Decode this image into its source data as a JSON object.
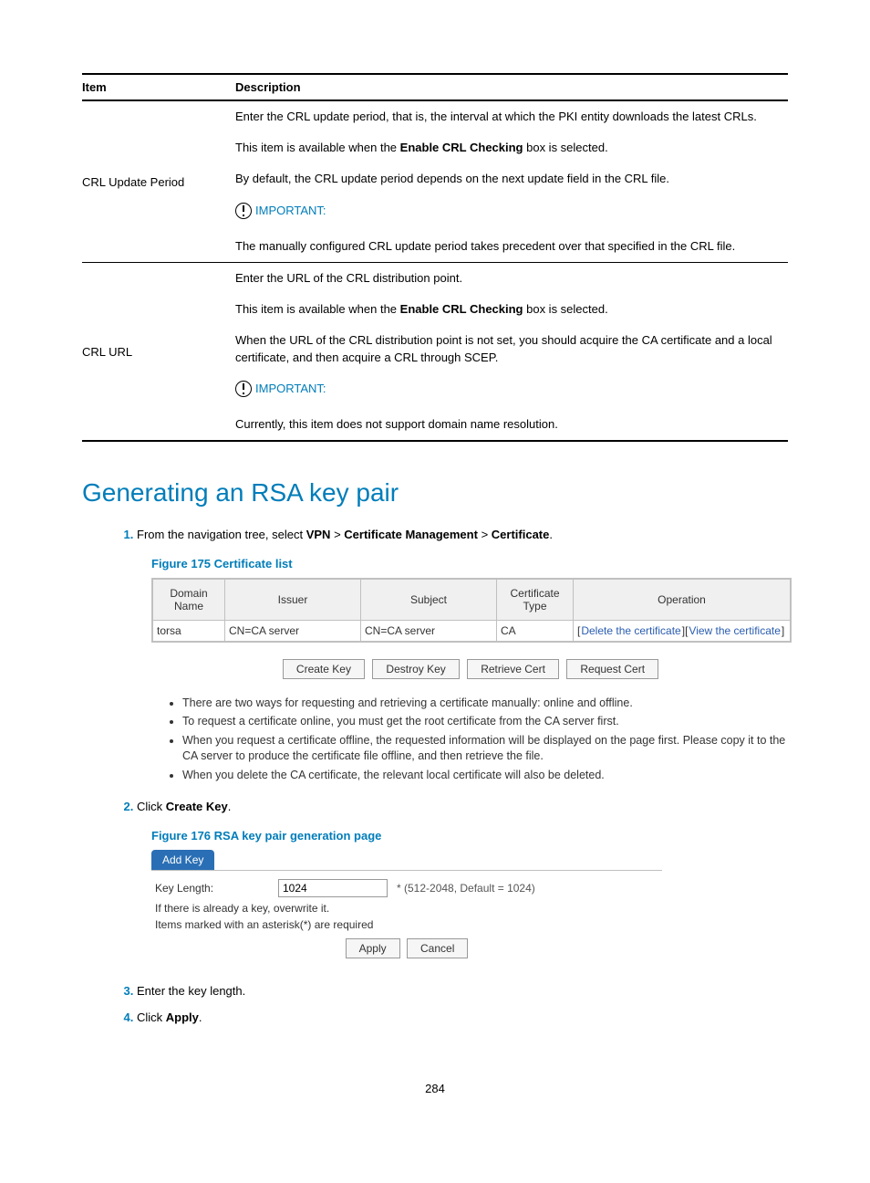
{
  "table": {
    "headers": {
      "item": "Item",
      "description": "Description"
    },
    "rows": [
      {
        "item": "CRL Update Period",
        "desc": [
          "Enter the CRL update period, that is, the interval at which the PKI entity downloads the latest CRLs.",
          {
            "html": "This item is available when the <b>Enable CRL Checking</b> box is selected."
          },
          "By default, the CRL update period depends on the next update field in the CRL file.",
          {
            "important": "IMPORTANT:"
          },
          "The manually configured CRL update period takes precedent over that specified in the CRL file."
        ]
      },
      {
        "item": "CRL URL",
        "desc": [
          "Enter the URL of the CRL distribution point.",
          {
            "html": "This item is available when the <b>Enable CRL Checking</b> box is selected."
          },
          "When the URL of the CRL distribution point is not set, you should acquire the CA certificate and a local certificate, and then acquire a CRL through SCEP.",
          {
            "important": "IMPORTANT:"
          },
          "Currently, this item does not support domain name resolution."
        ]
      }
    ]
  },
  "section_title": "Generating an RSA key pair",
  "step1": {
    "num": "1.",
    "prefix": "From the navigation tree, select ",
    "b1": "VPN",
    "g": ">",
    "b2": "Certificate Management",
    "b3": "Certificate",
    "suffix": "."
  },
  "fig175": "Figure 175 Certificate list",
  "certlist": {
    "headers": {
      "domain": "Domain Name",
      "issuer": "Issuer",
      "subject": "Subject",
      "type": "Certificate Type",
      "op": "Operation"
    },
    "row": {
      "domain": "torsa",
      "issuer": "CN=CA server",
      "subject": "CN=CA server",
      "type": "CA",
      "op_del": "Delete the certificate",
      "op_view": "View the certificate"
    }
  },
  "buttons": {
    "create": "Create Key",
    "destroy": "Destroy Key",
    "retrieve": "Retrieve Cert",
    "request": "Request Cert"
  },
  "notes": [
    "There are two ways for requesting and retrieving a certificate manually: online and offline.",
    "To request a certificate online, you must get the root certificate from the CA server first.",
    "When you request a certificate offline, the requested information will be displayed on the page first. Please copy it to the CA server to produce the certificate file offline, and then retrieve the file.",
    "When you delete the CA certificate, the relevant local certificate will also be deleted."
  ],
  "step2": {
    "num": "2.",
    "prefix": "Click ",
    "b": "Create Key",
    "suffix": "."
  },
  "fig176": "Figure 176 RSA key pair generation page",
  "addkey": {
    "tab": "Add Key",
    "label": "Key Length:",
    "value": "1024",
    "hint": "* (512-2048, Default = 1024)",
    "line1": "If there is already a key, overwrite it.",
    "line2": "Items marked with an asterisk(*) are required",
    "apply": "Apply",
    "cancel": "Cancel"
  },
  "step3": {
    "num": "3.",
    "text": "Enter the key length."
  },
  "step4": {
    "num": "4.",
    "prefix": "Click ",
    "b": "Apply",
    "suffix": "."
  },
  "page_num": "284",
  "colors": {
    "accent": "#007dba",
    "link": "#2a5db0",
    "tab_bg": "#2a6fb5"
  }
}
